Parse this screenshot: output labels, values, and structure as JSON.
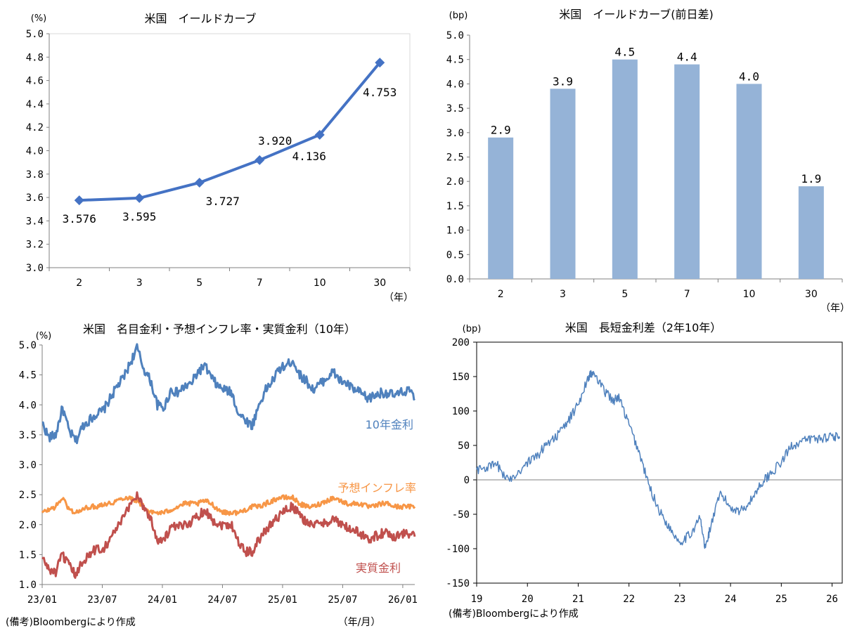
{
  "chart_data": [
    {
      "id": "yield_curve",
      "type": "line",
      "title": "米国　イールドカーブ",
      "ylabel": "(%)",
      "xunit": "（年）",
      "categories": [
        "2",
        "3",
        "5",
        "7",
        "10",
        "30"
      ],
      "values": [
        3.576,
        3.595,
        3.727,
        3.92,
        4.136,
        4.753
      ],
      "data_labels": [
        "3.576",
        "3.595",
        "3.727",
        "3.920",
        "4.136",
        "4.753"
      ],
      "ylim": [
        3.0,
        5.0
      ],
      "yticks": [
        "3.0",
        "3.2",
        "3.4",
        "3.6",
        "3.8",
        "4.0",
        "4.2",
        "4.4",
        "4.6",
        "4.8",
        "5.0"
      ],
      "color": "#4472c4"
    },
    {
      "id": "yield_curve_change",
      "type": "bar",
      "title": "米国　イールドカーブ(前日差)",
      "ylabel": "(bp)",
      "xunit": "（年）",
      "categories": [
        "2",
        "3",
        "5",
        "7",
        "10",
        "30"
      ],
      "values": [
        2.9,
        3.9,
        4.5,
        4.4,
        4.0,
        1.9
      ],
      "data_labels": [
        "2.9",
        "3.9",
        "4.5",
        "4.4",
        "4.0",
        "1.9"
      ],
      "ylim": [
        0,
        5.0
      ],
      "yticks": [
        "0.0",
        "0.5",
        "1.0",
        "1.5",
        "2.0",
        "2.5",
        "3.0",
        "3.5",
        "4.0",
        "4.5",
        "5.0"
      ],
      "color": "#95b3d7"
    },
    {
      "id": "nominal_inflation_real",
      "type": "line",
      "title": "米国　名目金利・予想インフレ率・実質金利（10年）",
      "ylabel": "(%)",
      "xunit": "（年/月）",
      "note": "(備考)Bloombergにより作成",
      "ylim": [
        1.0,
        5.0
      ],
      "yticks": [
        "1.0",
        "1.5",
        "2.0",
        "2.5",
        "3.0",
        "3.5",
        "4.0",
        "4.5",
        "5.0"
      ],
      "xticks": [
        "23/01",
        "23/07",
        "24/01",
        "24/07",
        "25/01",
        "25/07",
        "26/01"
      ],
      "series": [
        {
          "name": "10年金利",
          "color": "#4f81bd",
          "values": [
            3.7,
            3.45,
            3.5,
            3.95,
            3.55,
            3.4,
            3.65,
            3.75,
            3.85,
            3.9,
            4.1,
            4.3,
            4.45,
            4.7,
            4.95,
            4.6,
            4.4,
            4.0,
            3.95,
            4.25,
            4.2,
            4.3,
            4.35,
            4.55,
            4.65,
            4.45,
            4.3,
            4.25,
            4.2,
            3.85,
            3.75,
            3.65,
            4.0,
            4.25,
            4.4,
            4.6,
            4.65,
            4.75,
            4.5,
            4.4,
            4.25,
            4.35,
            4.45,
            4.55,
            4.4,
            4.35,
            4.25,
            4.2,
            4.1,
            4.15,
            4.2,
            4.2,
            4.15,
            4.2,
            4.25,
            4.1
          ]
        },
        {
          "name": "予想インフレ率",
          "color": "#f79646",
          "values": [
            2.2,
            2.25,
            2.3,
            2.45,
            2.25,
            2.2,
            2.25,
            2.3,
            2.3,
            2.35,
            2.35,
            2.4,
            2.45,
            2.45,
            2.4,
            2.3,
            2.2,
            2.2,
            2.2,
            2.25,
            2.3,
            2.35,
            2.35,
            2.35,
            2.4,
            2.35,
            2.25,
            2.2,
            2.2,
            2.2,
            2.25,
            2.3,
            2.3,
            2.35,
            2.4,
            2.45,
            2.45,
            2.45,
            2.35,
            2.3,
            2.3,
            2.35,
            2.4,
            2.45,
            2.4,
            2.35,
            2.35,
            2.35,
            2.3,
            2.3,
            2.35,
            2.35,
            2.3,
            2.3,
            2.3,
            2.3
          ]
        },
        {
          "name": "実質金利",
          "color": "#c0504d",
          "values": [
            1.45,
            1.25,
            1.2,
            1.5,
            1.3,
            1.15,
            1.4,
            1.5,
            1.6,
            1.6,
            1.75,
            1.95,
            2.1,
            2.35,
            2.5,
            2.3,
            2.1,
            1.75,
            1.75,
            1.95,
            1.95,
            2.0,
            2.05,
            2.15,
            2.25,
            2.1,
            2.0,
            2.0,
            2.0,
            1.7,
            1.55,
            1.55,
            1.75,
            1.9,
            2.05,
            2.15,
            2.25,
            2.3,
            2.15,
            2.05,
            2.0,
            2.0,
            2.05,
            2.1,
            2.0,
            1.95,
            1.9,
            1.85,
            1.75,
            1.8,
            1.85,
            1.85,
            1.8,
            1.85,
            1.85,
            1.8
          ]
        }
      ]
    },
    {
      "id": "term_spread",
      "type": "line",
      "title": "米国　長短金利差（2年10年）",
      "ylabel": "(bp)",
      "note": "(備考)Bloombergにより作成",
      "ylim": [
        -150,
        200
      ],
      "yticks": [
        "-150",
        "-100",
        "-50",
        "0",
        "50",
        "100",
        "150",
        "200"
      ],
      "xticks": [
        "19",
        "20",
        "21",
        "22",
        "23",
        "24",
        "25",
        "26"
      ],
      "color": "#4f81bd",
      "x": [
        19.0,
        19.2,
        19.4,
        19.6,
        19.8,
        20.0,
        20.2,
        20.4,
        20.6,
        20.8,
        21.0,
        21.2,
        21.3,
        21.5,
        21.7,
        21.8,
        22.0,
        22.2,
        22.4,
        22.6,
        22.8,
        23.0,
        23.2,
        23.4,
        23.5,
        23.6,
        23.8,
        24.0,
        24.2,
        24.4,
        24.6,
        24.8,
        25.0,
        25.2,
        25.4,
        25.6,
        25.8,
        26.0,
        26.15
      ],
      "values": [
        15,
        18,
        22,
        0,
        10,
        25,
        35,
        55,
        65,
        85,
        110,
        150,
        155,
        130,
        115,
        120,
        80,
        40,
        -10,
        -45,
        -70,
        -90,
        -80,
        -55,
        -100,
        -70,
        -20,
        -40,
        -45,
        -30,
        -5,
        10,
        25,
        50,
        55,
        60,
        60,
        65,
        60
      ]
    }
  ]
}
